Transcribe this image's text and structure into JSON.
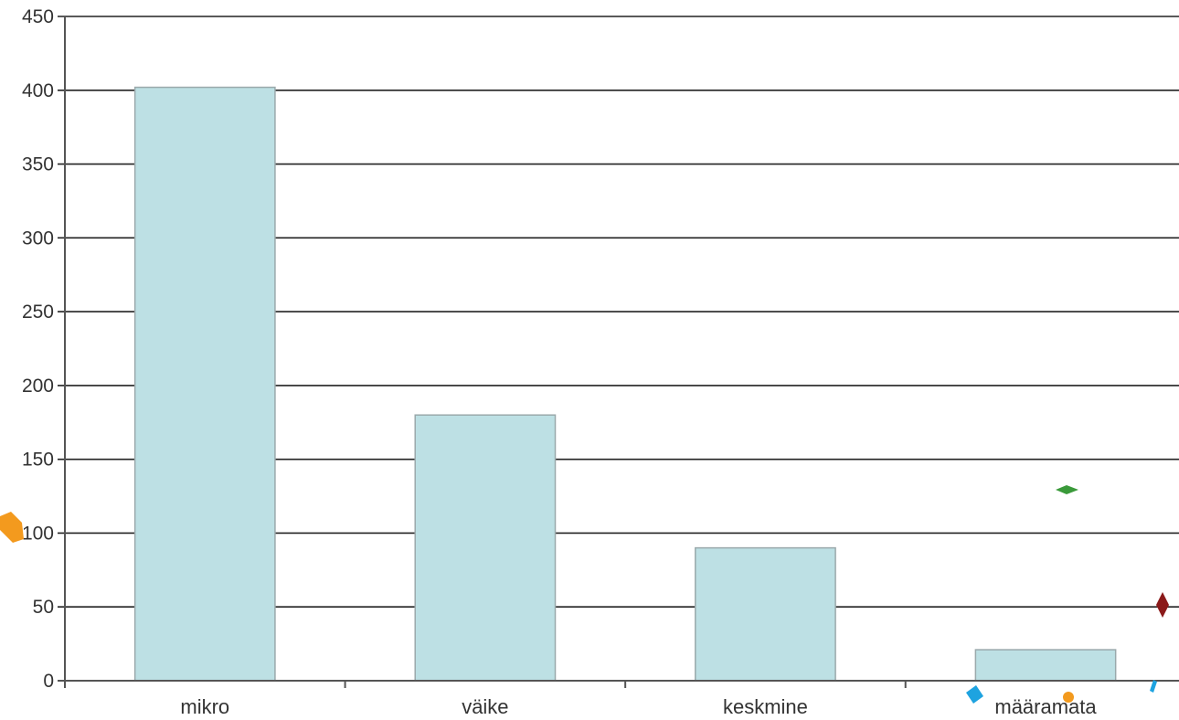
{
  "chart_data": {
    "type": "bar",
    "categories": [
      "mikro",
      "väike",
      "keskmine",
      "määramata"
    ],
    "values": [
      402,
      180,
      90,
      21
    ],
    "title": "",
    "xlabel": "",
    "ylabel": "",
    "ylim": [
      0,
      450
    ],
    "yticks": [
      0,
      50,
      100,
      150,
      200,
      250,
      300,
      350,
      400,
      450
    ],
    "grid": true,
    "legend": "none"
  },
  "colors": {
    "bar_fill": "#bde0e4",
    "bar_stroke": "#9aa9ab",
    "grid": "#222222",
    "axis": "#555555"
  }
}
